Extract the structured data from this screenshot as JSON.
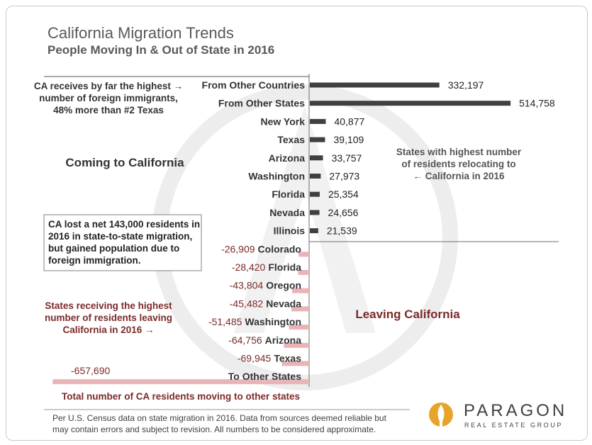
{
  "header": {
    "title": "California Migration Trends",
    "subtitle": "People Moving In & Out of State in 2016"
  },
  "chart_data": {
    "type": "bar",
    "orientation": "horizontal",
    "categories": [
      "From Other Countries",
      "From Other States",
      "New York",
      "Texas",
      "Arizona",
      "Washington",
      "Florida",
      "Nevada",
      "Illinois",
      "Colorado",
      "Florida",
      "Oregon",
      "Nevada",
      "Washington",
      "Arizona",
      "Texas",
      "To Other States"
    ],
    "values": [
      332197,
      514758,
      40877,
      39109,
      33757,
      27973,
      25354,
      24656,
      21539,
      -26909,
      -28420,
      -43804,
      -45482,
      -51485,
      -64756,
      -69945,
      -657690
    ],
    "value_labels": [
      "332,197",
      "514,758",
      "40,877",
      "39,109",
      "33,757",
      "27,973",
      "25,354",
      "24,656",
      "21,539",
      "-26,909",
      "-28,420",
      "-43,804",
      "-45,482",
      "-51,485",
      "-64,756",
      "-69,945",
      "-657,690"
    ],
    "colors": {
      "incoming": "#404040",
      "outgoing": "#e8b4b8",
      "outgoing_text": "#7b2a2a",
      "annotation_dark": "#333333"
    },
    "annotations": {
      "coming_label": "Coming to California",
      "leaving_label": "Leaving California",
      "foreign_note": [
        "CA receives by far the highest →",
        "number of foreign immigrants,",
        "48% more than #2 Texas"
      ],
      "states_in_note": [
        "States with highest number",
        "of  residents relocating to",
        "← California in 2016"
      ],
      "net_box": [
        "CA lost  a net 143,000 residents in",
        "2016  in  state-to-state  migration,",
        "but  gained  population  due  to",
        "foreign immigration."
      ],
      "states_out_note": [
        "States receiving the highest",
        "number of residents leaving",
        "California in 2016 →"
      ],
      "total_note": "Total number of CA residents moving to other states"
    }
  },
  "footer": {
    "line1": "Per U.S. Census data on state migration in 2016. Data from sources deemed reliable but",
    "line2": "may contain errors and subject to revision. All numbers to be considered approximate."
  },
  "logo": {
    "name": "PARAGON",
    "tagline": "REAL ESTATE GROUP",
    "icon": "paragon-flame-icon"
  }
}
